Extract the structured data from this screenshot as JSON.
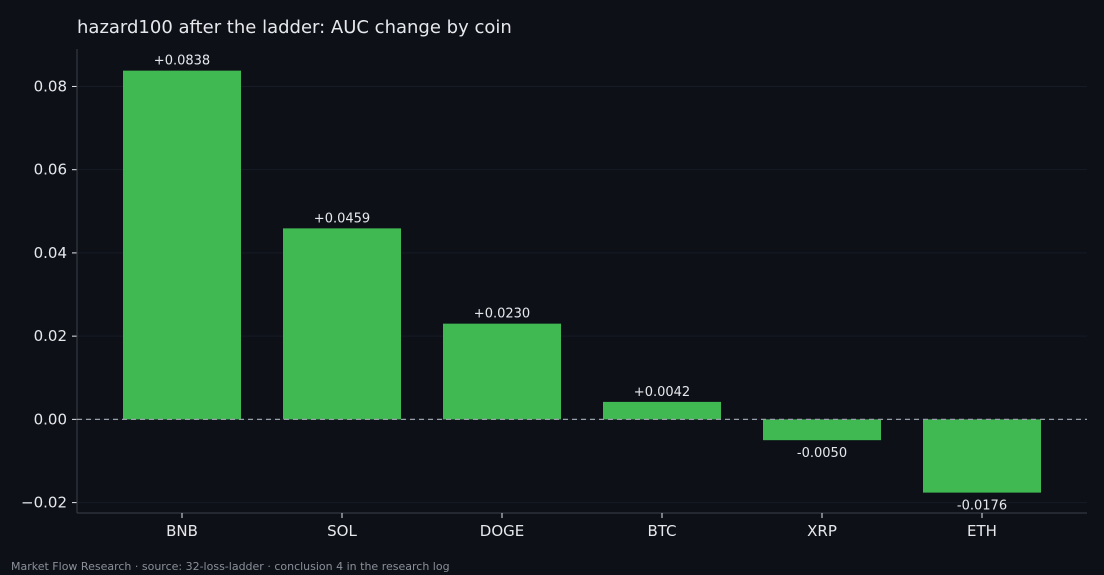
{
  "chart_data": {
    "type": "bar",
    "title": "hazard100 after the ladder: AUC change by coin",
    "xlabel": "",
    "ylabel": "",
    "categories": [
      "BNB",
      "SOL",
      "DOGE",
      "BTC",
      "XRP",
      "ETH"
    ],
    "values": [
      0.0838,
      0.0459,
      0.023,
      0.0042,
      -0.005,
      -0.0176
    ],
    "data_labels": [
      "+0.0838",
      "+0.0459",
      "+0.0230",
      "+0.0042",
      "-0.0050",
      "-0.0176"
    ],
    "ylim": [
      -0.0225,
      0.089
    ],
    "yticks": [
      -0.02,
      0.0,
      0.02,
      0.04,
      0.06,
      0.08
    ],
    "ytick_labels": [
      "−0.02",
      "0.00",
      "0.02",
      "0.04",
      "0.06",
      "0.08"
    ],
    "grid": true,
    "zero_line": "dashed",
    "legend": "none",
    "colors": {
      "bar": "#41b953",
      "background": "#0d1017",
      "text": "#e6e8ec",
      "grid": "#161b24",
      "axis": "#3a3f49",
      "zero_line": "#9aa0aa"
    }
  },
  "footer": "Market Flow Research · source: 32-loss-ladder · conclusion 4 in the research log"
}
